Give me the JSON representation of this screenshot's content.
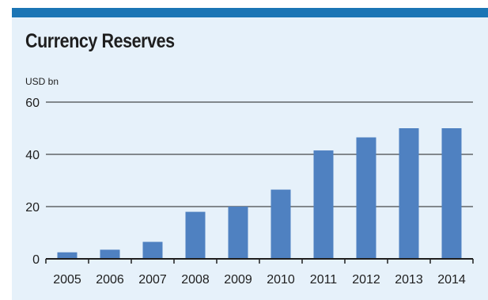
{
  "chart_data": {
    "type": "bar",
    "title": "Currency Reserves",
    "unit_label": "USD bn",
    "xlabel": "",
    "ylabel": "",
    "categories": [
      "2005",
      "2006",
      "2007",
      "2008",
      "2009",
      "2010",
      "2011",
      "2012",
      "2013",
      "2014"
    ],
    "values": [
      2.5,
      3.5,
      6.5,
      18,
      20,
      26.5,
      41.5,
      46.5,
      50,
      50
    ],
    "ylim": [
      0,
      60
    ],
    "yticks": [
      0,
      20,
      40,
      60
    ],
    "grid": true,
    "legend": "none",
    "bar_color": "#4f81c1"
  },
  "colors": {
    "panel_background": "#e6f1fa",
    "top_bar": "#1b75b5",
    "bar": "#4f81c1",
    "axis": "#1e1e1e"
  }
}
